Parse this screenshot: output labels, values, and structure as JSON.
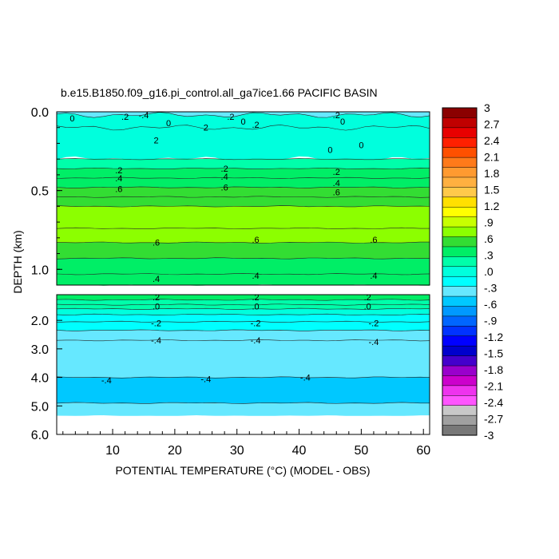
{
  "chart_data": {
    "type": "heatmap",
    "title": "b.e15.B1850.f09_g16.pi_control.all_ga7ice1.66 PACIFIC BASIN",
    "xlabel": "POTENTIAL TEMPERATURE (°C) (MODEL - OBS)",
    "ylabel": "DEPTH (km)",
    "x_range": [
      1,
      61
    ],
    "x_ticks": [
      "10",
      "20",
      "30",
      "40",
      "50",
      "60"
    ],
    "upper_panel": {
      "ylim": [
        0.0,
        1.1
      ],
      "y_ticks": [
        "0.0",
        "0.5",
        "1.0"
      ],
      "bands": [
        {
          "y0": 0.0,
          "y1": 0.02,
          "value": -0.4
        },
        {
          "y0": 0.02,
          "y1": 0.1,
          "value": 0.0
        },
        {
          "y0": 0.1,
          "y1": 0.3,
          "value": 0.0
        },
        {
          "y0": 0.3,
          "y1": 0.36,
          "value": 0.2
        },
        {
          "y0": 0.36,
          "y1": 0.42,
          "value": 0.3
        },
        {
          "y0": 0.42,
          "y1": 0.48,
          "value": 0.4
        },
        {
          "y0": 0.48,
          "y1": 0.54,
          "value": 0.5
        },
        {
          "y0": 0.54,
          "y1": 0.6,
          "value": 0.6
        },
        {
          "y0": 0.6,
          "y1": 0.74,
          "value": 0.75
        },
        {
          "y0": 0.74,
          "y1": 0.83,
          "value": 0.7
        },
        {
          "y0": 0.83,
          "y1": 0.93,
          "value": 0.55
        },
        {
          "y0": 0.93,
          "y1": 1.03,
          "value": 0.45
        },
        {
          "y0": 1.03,
          "y1": 1.1,
          "value": 0.38
        }
      ],
      "contour_labels": [
        {
          "x": 3.5,
          "y": 0.04,
          "text": "0"
        },
        {
          "x": 12,
          "y": 0.03,
          "text": ".2"
        },
        {
          "x": 15,
          "y": 0.02,
          "text": "-.4"
        },
        {
          "x": 19,
          "y": 0.07,
          "text": "0"
        },
        {
          "x": 25,
          "y": 0.1,
          "text": "2"
        },
        {
          "x": 29,
          "y": 0.03,
          "text": ".2"
        },
        {
          "x": 31,
          "y": 0.06,
          "text": "0"
        },
        {
          "x": 33,
          "y": 0.08,
          "text": ".2"
        },
        {
          "x": 46,
          "y": 0.02,
          "text": ".2"
        },
        {
          "x": 47,
          "y": 0.06,
          "text": "0"
        },
        {
          "x": 17,
          "y": 0.18,
          "text": "2"
        },
        {
          "x": 45,
          "y": 0.24,
          "text": "0"
        },
        {
          "x": 50,
          "y": 0.21,
          "text": "0"
        },
        {
          "x": 11,
          "y": 0.37,
          "text": ".2"
        },
        {
          "x": 11,
          "y": 0.42,
          "text": ".4"
        },
        {
          "x": 11,
          "y": 0.49,
          "text": ".6"
        },
        {
          "x": 28,
          "y": 0.36,
          "text": ".2"
        },
        {
          "x": 28,
          "y": 0.41,
          "text": ".4"
        },
        {
          "x": 28,
          "y": 0.48,
          "text": ".6"
        },
        {
          "x": 46,
          "y": 0.38,
          "text": ".2"
        },
        {
          "x": 46,
          "y": 0.45,
          "text": ".4"
        },
        {
          "x": 46,
          "y": 0.51,
          "text": ".6"
        },
        {
          "x": 17,
          "y": 0.83,
          "text": ".6"
        },
        {
          "x": 33,
          "y": 0.81,
          "text": ".6"
        },
        {
          "x": 52,
          "y": 0.81,
          "text": ".6"
        },
        {
          "x": 17,
          "y": 1.06,
          "text": ".4"
        },
        {
          "x": 33,
          "y": 1.04,
          "text": ".4"
        },
        {
          "x": 52,
          "y": 1.04,
          "text": ".4"
        }
      ]
    },
    "lower_panel": {
      "ylim": [
        1.1,
        6.0
      ],
      "y_ticks": [
        "2.0",
        "3.0",
        "4.0",
        "5.0",
        "6.0"
      ],
      "bands": [
        {
          "y0": 1.1,
          "y1": 1.28,
          "value": 0.3
        },
        {
          "y0": 1.28,
          "y1": 1.45,
          "value": 0.2
        },
        {
          "y0": 1.45,
          "y1": 1.6,
          "value": 0.1
        },
        {
          "y0": 1.6,
          "y1": 1.8,
          "value": 0.0
        },
        {
          "y0": 1.8,
          "y1": 2.05,
          "value": -0.1
        },
        {
          "y0": 2.05,
          "y1": 2.35,
          "value": -0.25
        },
        {
          "y0": 2.35,
          "y1": 2.7,
          "value": -0.35
        },
        {
          "y0": 2.7,
          "y1": 4.0,
          "value": -0.45
        },
        {
          "y0": 4.0,
          "y1": 4.9,
          "value": -0.5
        },
        {
          "y0": 4.9,
          "y1": 5.35,
          "value": -0.35
        }
      ],
      "missing_below": 5.35,
      "contour_labels": [
        {
          "x": 17,
          "y": 1.18,
          "text": ".2"
        },
        {
          "x": 17,
          "y": 1.5,
          "text": ".0"
        },
        {
          "x": 17,
          "y": 2.1,
          "text": "-.2"
        },
        {
          "x": 17,
          "y": 2.7,
          "text": "-.4"
        },
        {
          "x": 33,
          "y": 1.18,
          "text": ".2"
        },
        {
          "x": 33,
          "y": 1.5,
          "text": ".0"
        },
        {
          "x": 33,
          "y": 2.1,
          "text": "-.2"
        },
        {
          "x": 33,
          "y": 2.7,
          "text": "-.4"
        },
        {
          "x": 51,
          "y": 1.18,
          "text": ".2"
        },
        {
          "x": 51,
          "y": 1.5,
          "text": ".0"
        },
        {
          "x": 52,
          "y": 2.1,
          "text": "-.2"
        },
        {
          "x": 52,
          "y": 2.75,
          "text": "-.4"
        },
        {
          "x": 9,
          "y": 4.1,
          "text": "-.4"
        },
        {
          "x": 25,
          "y": 4.05,
          "text": "-.4"
        },
        {
          "x": 41,
          "y": 4.0,
          "text": "-.4"
        }
      ]
    },
    "colorbar": {
      "labels": [
        "3",
        "2.7",
        "2.4",
        "2.1",
        "1.8",
        "1.5",
        "1.2",
        ".9",
        ".6",
        ".3",
        ".0",
        "-.3",
        "-.6",
        "-.9",
        "-1.2",
        "-1.5",
        "-1.8",
        "-2.1",
        "-2.4",
        "-2.7",
        "-3"
      ],
      "colors_top_to_bottom": [
        "#8b0000",
        "#c00000",
        "#e80000",
        "#ff2000",
        "#ff5000",
        "#ff7a1a",
        "#ff9a30",
        "#ffb040",
        "#ffc94a",
        "#ffe000",
        "#ffff00",
        "#c8ff00",
        "#8cff00",
        "#33dd33",
        "#00ee66",
        "#00ffaa",
        "#00ffdd",
        "#00ffff",
        "#66e8ff",
        "#00c8ff",
        "#0099ff",
        "#0066ff",
        "#0033ff",
        "#0000ff",
        "#0000cc",
        "#4400cc",
        "#9900cc",
        "#cc00cc",
        "#ee33ee",
        "#ff55ff",
        "#c8c8c8",
        "#a0a0a0",
        "#787878"
      ]
    }
  }
}
